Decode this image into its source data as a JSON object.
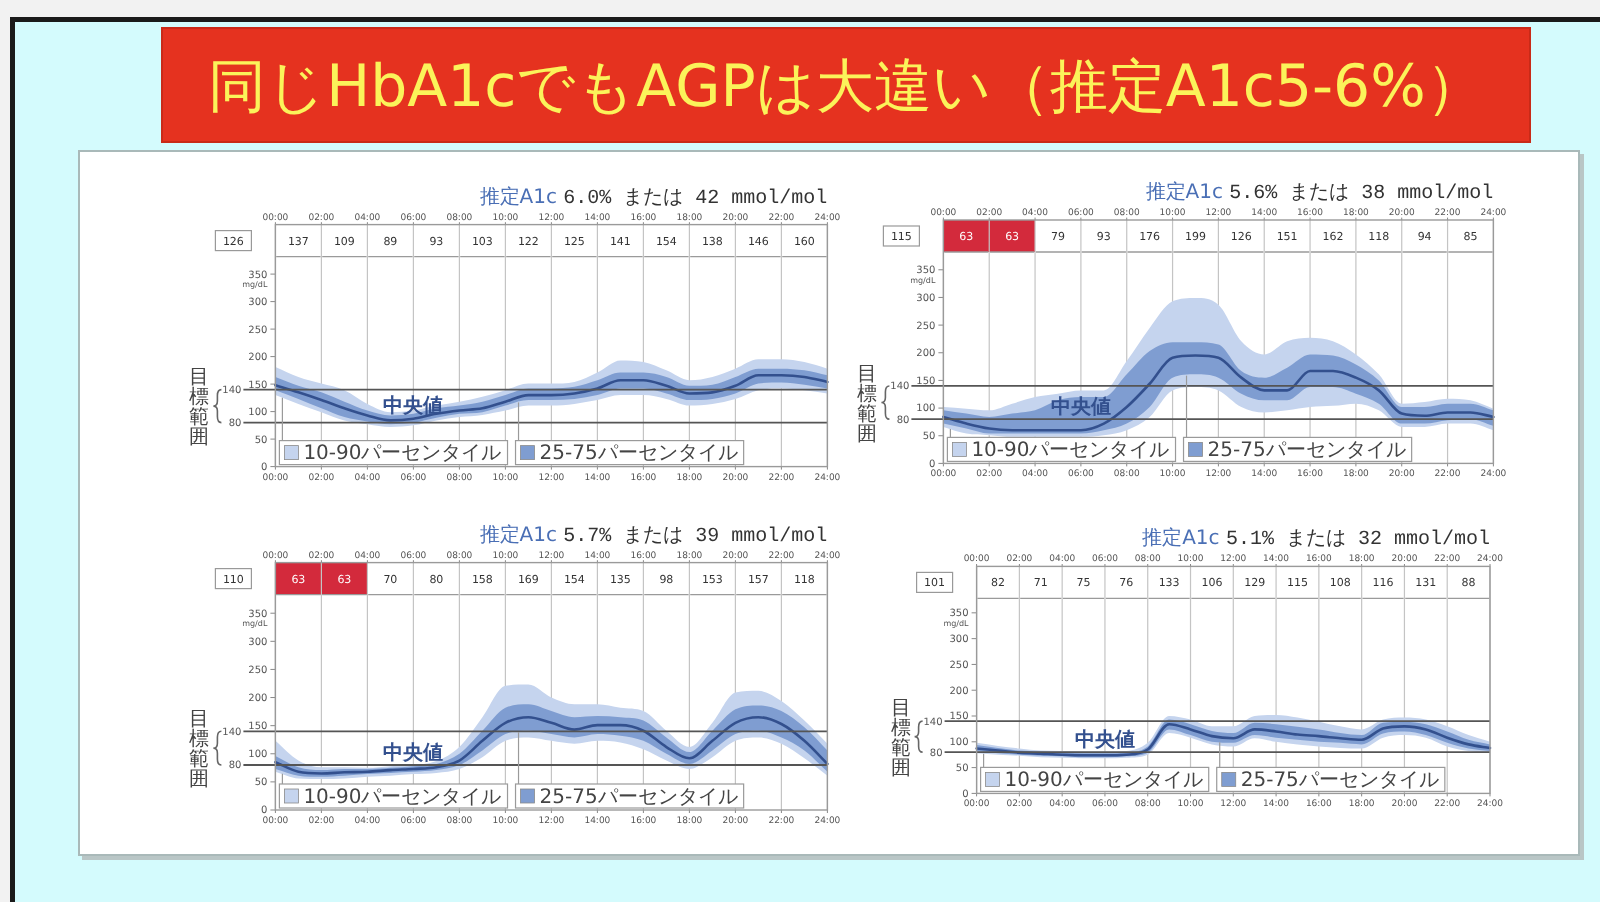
{
  "chart_data": [
    {
      "type": "other",
      "title": "同じHbA1cでもAGPは大違い（推定A1c5-6%）"
    },
    {
      "type": "line",
      "title": "推定A1c 6.0% または 42 mmol/mol",
      "ylabel": "mg/dL",
      "x": [
        0,
        1,
        2,
        3,
        4,
        5,
        6,
        7,
        8,
        9,
        10,
        11,
        12,
        13,
        14,
        15,
        16,
        17,
        18,
        19,
        20,
        21,
        22,
        23,
        24
      ],
      "xlim": [
        0,
        24
      ],
      "xticks": [
        {
          "value": 0,
          "label": "00:00"
        },
        {
          "value": 2,
          "label": "02:00"
        },
        {
          "value": 4,
          "label": "04:00"
        },
        {
          "value": 6,
          "label": "06:00"
        },
        {
          "value": 8,
          "label": "08:00"
        },
        {
          "value": 10,
          "label": "10:00"
        },
        {
          "value": 12,
          "label": "12:00"
        },
        {
          "value": 14,
          "label": "14:00"
        },
        {
          "value": 16,
          "label": "16:00"
        },
        {
          "value": 18,
          "label": "18:00"
        },
        {
          "value": 20,
          "label": "20:00"
        },
        {
          "value": 22,
          "label": "22:00"
        },
        {
          "value": 24,
          "label": "24:00"
        }
      ],
      "x2lim": [
        0,
        24
      ],
      "x2ticks": [
        {
          "value": 0,
          "label": "00:00"
        },
        {
          "value": 2,
          "label": "02:00"
        },
        {
          "value": 4,
          "label": "04:00"
        },
        {
          "value": 6,
          "label": "06:00"
        },
        {
          "value": 8,
          "label": "08:00"
        },
        {
          "value": 10,
          "label": "10:00"
        },
        {
          "value": 12,
          "label": "12:00"
        },
        {
          "value": 14,
          "label": "14:00"
        },
        {
          "value": 16,
          "label": "16:00"
        },
        {
          "value": 18,
          "label": "18:00"
        },
        {
          "value": 20,
          "label": "20:00"
        },
        {
          "value": 22,
          "label": "22:00"
        },
        {
          "value": 24,
          "label": "24:00"
        }
      ],
      "ylim": [
        0,
        440
      ],
      "yticks": [
        0,
        50,
        100,
        150,
        200,
        250,
        300,
        350
      ],
      "grid": "x",
      "ref_lines": [
        {
          "axis": "y",
          "value": 140,
          "label": "140"
        },
        {
          "axis": "y",
          "value": 80,
          "label": "80"
        }
      ],
      "annotations": [
        "目標範囲",
        "126",
        "137",
        "109",
        "89",
        "93",
        "103",
        "122",
        "125",
        "141",
        "154",
        "138",
        "146",
        "160"
      ],
      "series": [
        {
          "name": "10-90パーセンタイル",
          "type": "area",
          "color": "#c5d4ee",
          "values": [
            null,
            null,
            null,
            null,
            null,
            null,
            null,
            null,
            null,
            null,
            null,
            null,
            null,
            null,
            null,
            null,
            null,
            null,
            null,
            null,
            null,
            null,
            null,
            null,
            null
          ],
          "lower": [
            130,
            114,
            99,
            84,
            77,
            72,
            75,
            84,
            90,
            94,
            102,
            111,
            111,
            114,
            121,
            130,
            130,
            123,
            111,
            114,
            123,
            139,
            142,
            139,
            133
          ],
          "upper": [
            181,
            163,
            151,
            139,
            114,
            99,
            102,
            111,
            118,
            127,
            139,
            151,
            151,
            154,
            171,
            193,
            190,
            175,
            157,
            163,
            178,
            195,
            195,
            190,
            178
          ]
        },
        {
          "name": "25-75パーセンタイル",
          "type": "area",
          "color": "#7f9dd1",
          "values": [
            null,
            null,
            null,
            null,
            null,
            null,
            null,
            null,
            null,
            null,
            null,
            null,
            null,
            null,
            null,
            null,
            null,
            null,
            null,
            null,
            null,
            null,
            null,
            null,
            null
          ],
          "lower": [
            139,
            123,
            106,
            90,
            82,
            77,
            80,
            89,
            96,
            99,
            111,
            121,
            121,
            123,
            130,
            142,
            142,
            133,
            121,
            123,
            133,
            151,
            153,
            149,
            142
          ],
          "upper": [
            163,
            147,
            135,
            118,
            102,
            93,
            96,
            106,
            111,
            118,
            130,
            142,
            142,
            145,
            157,
            171,
            171,
            163,
            147,
            149,
            163,
            178,
            178,
            175,
            166
          ]
        },
        {
          "name": "中央値",
          "type": "line",
          "color": "#33508e",
          "values": [
            148,
            135,
            121,
            106,
            93,
            84,
            87,
            96,
            102,
            106,
            118,
            130,
            130,
            133,
            142,
            157,
            157,
            147,
            133,
            135,
            147,
            166,
            166,
            163,
            154
          ]
        }
      ]
    },
    {
      "type": "line",
      "title": "推定A1c 5.6% または 38 mmol/mol",
      "ylabel": "mg/dL",
      "x": [
        0,
        1,
        2,
        3,
        4,
        5,
        6,
        7,
        8,
        9,
        10,
        11,
        12,
        13,
        14,
        15,
        16,
        17,
        18,
        19,
        20,
        21,
        22,
        23,
        24
      ],
      "xlim": [
        0,
        24
      ],
      "xticks": [
        {
          "value": 0,
          "label": "00:00"
        },
        {
          "value": 2,
          "label": "02:00"
        },
        {
          "value": 4,
          "label": "04:00"
        },
        {
          "value": 6,
          "label": "06:00"
        },
        {
          "value": 8,
          "label": "08:00"
        },
        {
          "value": 10,
          "label": "10:00"
        },
        {
          "value": 12,
          "label": "12:00"
        },
        {
          "value": 14,
          "label": "14:00"
        },
        {
          "value": 16,
          "label": "16:00"
        },
        {
          "value": 18,
          "label": "18:00"
        },
        {
          "value": 20,
          "label": "20:00"
        },
        {
          "value": 22,
          "label": "22:00"
        },
        {
          "value": 24,
          "label": "24:00"
        }
      ],
      "x2lim": [
        0,
        24
      ],
      "x2ticks": [
        {
          "value": 0,
          "label": "00:00"
        },
        {
          "value": 2,
          "label": "02:00"
        },
        {
          "value": 4,
          "label": "04:00"
        },
        {
          "value": 6,
          "label": "06:00"
        },
        {
          "value": 8,
          "label": "08:00"
        },
        {
          "value": 10,
          "label": "10:00"
        },
        {
          "value": 12,
          "label": "12:00"
        },
        {
          "value": 14,
          "label": "14:00"
        },
        {
          "value": 16,
          "label": "16:00"
        },
        {
          "value": 18,
          "label": "18:00"
        },
        {
          "value": 20,
          "label": "20:00"
        },
        {
          "value": 22,
          "label": "22:00"
        },
        {
          "value": 24,
          "label": "24:00"
        }
      ],
      "ylim": [
        0,
        440
      ],
      "yticks": [
        0,
        50,
        100,
        150,
        200,
        250,
        300,
        350
      ],
      "grid": "x",
      "ref_lines": [
        {
          "axis": "y",
          "value": 140,
          "label": "140"
        },
        {
          "axis": "y",
          "value": 80,
          "label": "80"
        }
      ],
      "bands": [
        {
          "axis": "x",
          "from": 0,
          "to": 4,
          "color": "#d32a3c"
        }
      ],
      "annotations": [
        "目標範囲",
        "115",
        "63",
        "63",
        "79",
        "93",
        "176",
        "199",
        "126",
        "151",
        "162",
        "118",
        "94",
        "85"
      ],
      "series": [
        {
          "name": "10-90パーセンタイル",
          "type": "area",
          "color": "#c5d4ee",
          "values": [
            null,
            null,
            null,
            null,
            null,
            null,
            null,
            null,
            null,
            null,
            null,
            null,
            null,
            null,
            null,
            null,
            null,
            null,
            null,
            null,
            null,
            null,
            null,
            null,
            null
          ],
          "lower": [
            66,
            54,
            51,
            48,
            48,
            48,
            48,
            51,
            60,
            84,
            132,
            138,
            132,
            102,
            92,
            96,
            102,
            104,
            108,
            96,
            66,
            66,
            72,
            72,
            60
          ],
          "upper": [
            102,
            99,
            96,
            108,
            120,
            126,
            132,
            132,
            185,
            245,
            293,
            299,
            287,
            221,
            197,
            221,
            227,
            221,
            197,
            161,
            108,
            111,
            117,
            114,
            99
          ]
        },
        {
          "name": "25-75パーセンタイル",
          "type": "area",
          "color": "#7f9dd1",
          "values": [
            null,
            null,
            null,
            null,
            null,
            null,
            null,
            null,
            null,
            null,
            null,
            null,
            null,
            null,
            null,
            null,
            null,
            null,
            null,
            null,
            null,
            null,
            null,
            null,
            null
          ],
          "lower": [
            72,
            63,
            54,
            54,
            54,
            54,
            54,
            60,
            72,
            102,
            155,
            161,
            155,
            126,
            114,
            114,
            138,
            138,
            126,
            108,
            72,
            72,
            78,
            80,
            68
          ],
          "upper": [
            96,
            90,
            84,
            90,
            96,
            114,
            120,
            120,
            161,
            203,
            219,
            219,
            215,
            167,
            155,
            173,
            197,
            195,
            179,
            150,
            102,
            102,
            108,
            108,
            96
          ]
        },
        {
          "name": "中央値",
          "type": "line",
          "color": "#33508e",
          "values": [
            84,
            72,
            63,
            60,
            60,
            60,
            60,
            72,
            102,
            144,
            191,
            195,
            191,
            155,
            132,
            132,
            167,
            167,
            155,
            132,
            90,
            86,
            92,
            92,
            84
          ]
        }
      ]
    },
    {
      "type": "line",
      "title": "推定A1c 5.7% または 39 mmol/mol",
      "ylabel": "mg/dL",
      "x": [
        0,
        1,
        2,
        3,
        4,
        5,
        6,
        7,
        8,
        9,
        10,
        11,
        12,
        13,
        14,
        15,
        16,
        17,
        18,
        19,
        20,
        21,
        22,
        23,
        24
      ],
      "xlim": [
        0,
        24
      ],
      "xticks": [
        {
          "value": 0,
          "label": "00:00"
        },
        {
          "value": 2,
          "label": "02:00"
        },
        {
          "value": 4,
          "label": "04:00"
        },
        {
          "value": 6,
          "label": "06:00"
        },
        {
          "value": 8,
          "label": "08:00"
        },
        {
          "value": 10,
          "label": "10:00"
        },
        {
          "value": 12,
          "label": "12:00"
        },
        {
          "value": 14,
          "label": "14:00"
        },
        {
          "value": 16,
          "label": "16:00"
        },
        {
          "value": 18,
          "label": "18:00"
        },
        {
          "value": 20,
          "label": "20:00"
        },
        {
          "value": 22,
          "label": "22:00"
        },
        {
          "value": 24,
          "label": "24:00"
        }
      ],
      "x2lim": [
        0,
        24
      ],
      "x2ticks": [
        {
          "value": 0,
          "label": "00:00"
        },
        {
          "value": 2,
          "label": "02:00"
        },
        {
          "value": 4,
          "label": "04:00"
        },
        {
          "value": 6,
          "label": "06:00"
        },
        {
          "value": 8,
          "label": "08:00"
        },
        {
          "value": 10,
          "label": "10:00"
        },
        {
          "value": 12,
          "label": "12:00"
        },
        {
          "value": 14,
          "label": "14:00"
        },
        {
          "value": 16,
          "label": "16:00"
        },
        {
          "value": 18,
          "label": "18:00"
        },
        {
          "value": 20,
          "label": "20:00"
        },
        {
          "value": 22,
          "label": "22:00"
        },
        {
          "value": 24,
          "label": "24:00"
        }
      ],
      "ylim": [
        0,
        440
      ],
      "yticks": [
        0,
        50,
        100,
        150,
        200,
        250,
        300,
        350
      ],
      "grid": "x",
      "ref_lines": [
        {
          "axis": "y",
          "value": 140,
          "label": "140"
        },
        {
          "axis": "y",
          "value": 80,
          "label": "80"
        }
      ],
      "bands": [
        {
          "axis": "x",
          "from": 0,
          "to": 4,
          "color": "#d32a3c"
        }
      ],
      "annotations": [
        "目標範囲",
        "110",
        "63",
        "63",
        "70",
        "80",
        "158",
        "169",
        "154",
        "135",
        "98",
        "153",
        "157",
        "118"
      ],
      "series": [
        {
          "name": "10-90パーセンタイル",
          "type": "area",
          "color": "#c5d4ee",
          "values": [
            null,
            null,
            null,
            null,
            null,
            null,
            null,
            null,
            null,
            null,
            null,
            null,
            null,
            null,
            null,
            null,
            null,
            null,
            null,
            null,
            null,
            null,
            null,
            null,
            null
          ],
          "lower": [
            68,
            56,
            55,
            56,
            59,
            61,
            64,
            66,
            73,
            94,
            123,
            129,
            123,
            118,
            123,
            120,
            108,
            88,
            73,
            94,
            123,
            129,
            118,
            92,
            61
          ],
          "upper": [
            123,
            88,
            76,
            76,
            75,
            78,
            80,
            87,
            112,
            165,
            221,
            223,
            200,
            188,
            188,
            182,
            176,
            141,
            112,
            155,
            209,
            212,
            194,
            159,
            118
          ]
        },
        {
          "name": "25-75パーセンタイル",
          "type": "area",
          "color": "#7f9dd1",
          "values": [
            null,
            null,
            null,
            null,
            null,
            null,
            null,
            null,
            null,
            null,
            null,
            null,
            null,
            null,
            null,
            null,
            null,
            null,
            null,
            null,
            null,
            null,
            null,
            null,
            null
          ],
          "lower": [
            73,
            61,
            59,
            61,
            64,
            66,
            68,
            71,
            80,
            106,
            135,
            141,
            135,
            129,
            135,
            132,
            123,
            100,
            82,
            106,
            135,
            141,
            129,
            106,
            68
          ],
          "upper": [
            96,
            76,
            71,
            73,
            73,
            75,
            78,
            82,
            100,
            141,
            182,
            188,
            176,
            165,
            167,
            165,
            159,
            129,
            103,
            141,
            179,
            186,
            176,
            147,
            106
          ]
        },
        {
          "name": "中央値",
          "type": "line",
          "color": "#33508e",
          "values": [
            85,
            68,
            65,
            67,
            68,
            71,
            73,
            76,
            88,
            123,
            155,
            165,
            155,
            143,
            151,
            151,
            141,
            112,
            92,
            123,
            155,
            165,
            153,
            123,
            82
          ]
        }
      ]
    },
    {
      "type": "line",
      "title": "推定A1c 5.1% または 32 mmol/mol",
      "ylabel": "mg/dL",
      "x": [
        0,
        1,
        2,
        3,
        4,
        5,
        6,
        7,
        8,
        9,
        10,
        11,
        12,
        13,
        14,
        15,
        16,
        17,
        18,
        19,
        20,
        21,
        22,
        23,
        24
      ],
      "xlim": [
        0,
        24
      ],
      "xticks": [
        {
          "value": 0,
          "label": "00:00"
        },
        {
          "value": 2,
          "label": "02:00"
        },
        {
          "value": 4,
          "label": "04:00"
        },
        {
          "value": 6,
          "label": "06:00"
        },
        {
          "value": 8,
          "label": "08:00"
        },
        {
          "value": 10,
          "label": "10:00"
        },
        {
          "value": 12,
          "label": "12:00"
        },
        {
          "value": 14,
          "label": "14:00"
        },
        {
          "value": 16,
          "label": "16:00"
        },
        {
          "value": 18,
          "label": "18:00"
        },
        {
          "value": 20,
          "label": "20:00"
        },
        {
          "value": 22,
          "label": "22:00"
        },
        {
          "value": 24,
          "label": "24:00"
        }
      ],
      "x2lim": [
        0,
        24
      ],
      "x2ticks": [
        {
          "value": 0,
          "label": "00:00"
        },
        {
          "value": 2,
          "label": "02:00"
        },
        {
          "value": 4,
          "label": "04:00"
        },
        {
          "value": 6,
          "label": "06:00"
        },
        {
          "value": 8,
          "label": "08:00"
        },
        {
          "value": 10,
          "label": "10:00"
        },
        {
          "value": 12,
          "label": "12:00"
        },
        {
          "value": 14,
          "label": "14:00"
        },
        {
          "value": 16,
          "label": "16:00"
        },
        {
          "value": 18,
          "label": "18:00"
        },
        {
          "value": 20,
          "label": "20:00"
        },
        {
          "value": 22,
          "label": "22:00"
        },
        {
          "value": 24,
          "label": "24:00"
        }
      ],
      "ylim": [
        0,
        440
      ],
      "yticks": [
        0,
        50,
        100,
        150,
        200,
        250,
        300,
        350
      ],
      "grid": "x",
      "ref_lines": [
        {
          "axis": "y",
          "value": 140,
          "label": "140"
        },
        {
          "axis": "y",
          "value": 80,
          "label": "80"
        }
      ],
      "annotations": [
        "目標範囲",
        "101",
        "82",
        "71",
        "75",
        "76",
        "133",
        "106",
        "129",
        "115",
        "108",
        "116",
        "131",
        "88"
      ],
      "series": [
        {
          "name": "10-90パーセンタイル",
          "type": "area",
          "color": "#c5d4ee",
          "values": [
            null,
            null,
            null,
            null,
            null,
            null,
            null,
            null,
            null,
            null,
            null,
            null,
            null,
            null,
            null,
            null,
            null,
            null,
            null,
            null,
            null,
            null,
            null,
            null,
            null
          ],
          "lower": [
            78,
            75,
            73,
            70,
            69,
            68,
            68,
            69,
            75,
            117,
            108,
            95,
            91,
            107,
            100,
            95,
            91,
            88,
            87,
            108,
            113,
            108,
            91,
            82,
            78
          ],
          "upper": [
            98,
            92,
            87,
            83,
            82,
            81,
            81,
            82,
            98,
            150,
            143,
            130,
            130,
            150,
            152,
            147,
            139,
            130,
            124,
            143,
            147,
            143,
            130,
            113,
            100
          ]
        },
        {
          "name": "25-75パーセンタイル",
          "type": "area",
          "color": "#7f9dd1",
          "values": [
            null,
            null,
            null,
            null,
            null,
            null,
            null,
            null,
            null,
            null,
            null,
            null,
            null,
            null,
            null,
            null,
            null,
            null,
            null,
            null,
            null,
            null,
            null,
            null,
            null
          ],
          "lower": [
            82,
            78,
            75,
            73,
            72,
            70,
            70,
            72,
            79,
            124,
            113,
            100,
            98,
            113,
            108,
            104,
            100,
            98,
            95,
            116,
            120,
            113,
            98,
            87,
            82
          ],
          "upper": [
            94,
            88,
            83,
            81,
            79,
            78,
            78,
            79,
            91,
            143,
            134,
            121,
            117,
            137,
            134,
            129,
            124,
            117,
            113,
            137,
            139,
            134,
            120,
            104,
            95
          ]
        },
        {
          "name": "中央値",
          "type": "line",
          "color": "#33508e",
          "values": [
            87,
            83,
            79,
            77,
            75,
            74,
            74,
            75,
            85,
            134,
            124,
            111,
            107,
            124,
            120,
            114,
            111,
            107,
            104,
            126,
            130,
            124,
            108,
            95,
            88
          ]
        }
      ]
    }
  ]
}
